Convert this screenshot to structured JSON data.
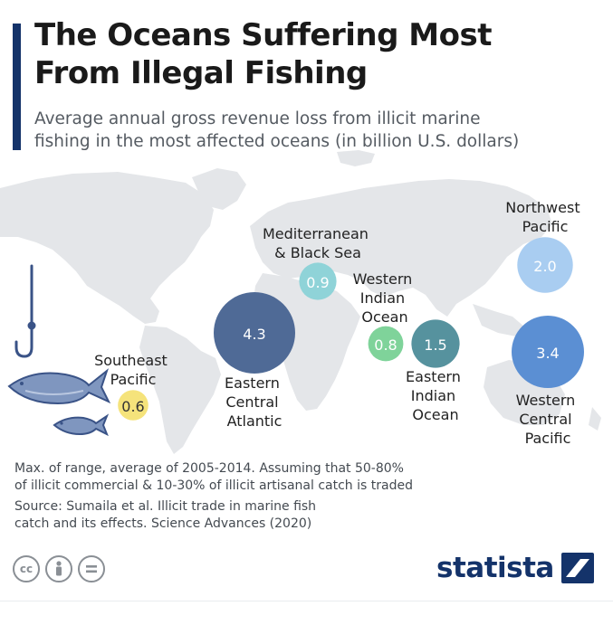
{
  "header": {
    "title_lines": [
      "The Oceans Suffering Most",
      "From Illegal Fishing"
    ],
    "subtitle_lines": [
      "Average annual gross revenue loss from illicit marine",
      "fishing in the most affected oceans (in billion U.S. dollars)"
    ]
  },
  "chart_data": {
    "type": "bubble-map",
    "unit": "billion U.S. dollars",
    "regions": [
      {
        "name_lines": [
          "Eastern",
          "Central",
          "Atlantic"
        ],
        "value": 4.3,
        "color": "#4f6a96"
      },
      {
        "name_lines": [
          "Western",
          "Central",
          "Pacific"
        ],
        "value": 3.4,
        "color": "#5b8fd3"
      },
      {
        "name_lines": [
          "Northwest",
          "Pacific"
        ],
        "value": 2.0,
        "color": "#a9cdf1"
      },
      {
        "name_lines": [
          "Eastern",
          "Indian",
          "Ocean"
        ],
        "value": 1.5,
        "color": "#56929e"
      },
      {
        "name_lines": [
          "Mediterranean",
          "& Black Sea"
        ],
        "value": 0.9,
        "color": "#8fd3d8"
      },
      {
        "name_lines": [
          "Western",
          "Indian",
          "Ocean"
        ],
        "value": 0.8,
        "color": "#7fd39a"
      },
      {
        "name_lines": [
          "Southeast",
          "Pacific"
        ],
        "value": 0.6,
        "color": "#f5e37b"
      }
    ]
  },
  "footer": {
    "note_lines": [
      "Max. of range, average of 2005-2014. Assuming that 50-80%",
      "of illicit commercial & 10-30% of illicit artisanal catch is traded"
    ],
    "source_lines": [
      "Source: Sumaila et al. Illicit trade in marine fish",
      "catch and its effects. Science Advances (2020)"
    ],
    "license_icons": [
      "cc-icon",
      "by-icon",
      "nd-icon"
    ],
    "brand": "statista"
  },
  "colors": {
    "accent": "#14336a",
    "land": "#e4e6e9",
    "fish": "#7f96bf",
    "hook": "#3a5387"
  }
}
